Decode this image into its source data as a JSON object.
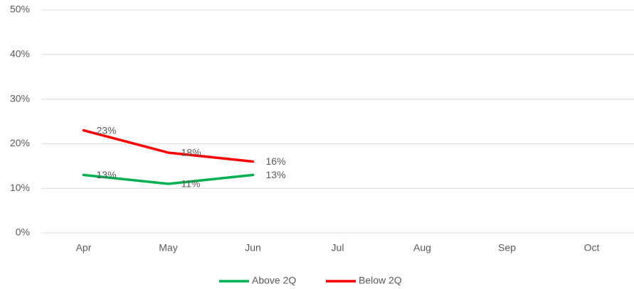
{
  "chart_data": {
    "type": "line",
    "categories": [
      "Apr",
      "May",
      "Jun",
      "Jul",
      "Aug",
      "Sep",
      "Oct"
    ],
    "series": [
      {
        "name": "Above 2Q",
        "color": "#00b050",
        "values": [
          13,
          11,
          13,
          null,
          null,
          null,
          null
        ],
        "value_labels": [
          "13%",
          "11%",
          "13%",
          null,
          null,
          null,
          null
        ]
      },
      {
        "name": "Below 2Q",
        "color": "#ff0000",
        "values": [
          23,
          18,
          16,
          null,
          null,
          null,
          null
        ],
        "value_labels": [
          "23%",
          "18%",
          "16%",
          null,
          null,
          null,
          null
        ]
      }
    ],
    "ylim": [
      0,
      50
    ],
    "yticks": [
      {
        "value": 0,
        "label": "0%"
      },
      {
        "value": 10,
        "label": "10%"
      },
      {
        "value": 20,
        "label": "20%"
      },
      {
        "value": 30,
        "label": "30%"
      },
      {
        "value": 40,
        "label": "40%"
      },
      {
        "value": 50,
        "label": "50%"
      }
    ],
    "grid": true,
    "legend": "bottom"
  }
}
